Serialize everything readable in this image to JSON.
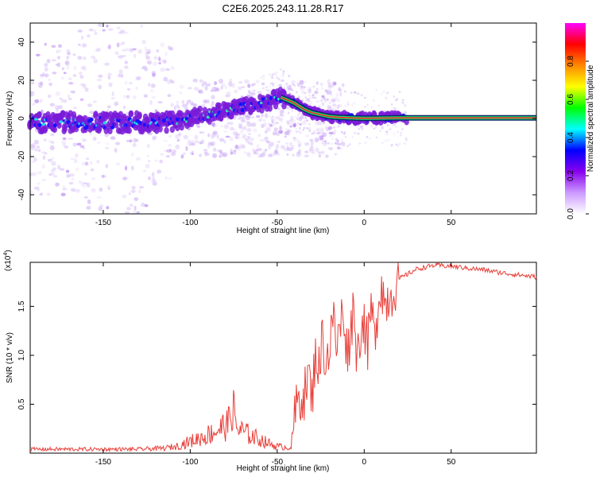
{
  "title": "C2E6.2025.243.11.28.R17",
  "chart_data": [
    {
      "type": "heatmap",
      "name": "spectrogram",
      "xlabel": "Height of straight line (km)",
      "ylabel": "Frequency (Hz)",
      "xlim": [
        -192,
        99
      ],
      "ylim": [
        -50,
        50
      ],
      "x_ticks": [
        -150,
        -100,
        -50,
        0,
        50
      ],
      "y_ticks": [
        -40,
        -20,
        0,
        20,
        40
      ],
      "ridge": {
        "description": "Peak Doppler frequency track vs height",
        "x": [
          -192,
          -150,
          -112,
          -105,
          -95,
          -85,
          -75,
          -65,
          -55,
          -48,
          -45,
          -40,
          -35,
          -30,
          -25,
          -20,
          -15,
          -10,
          -5,
          0,
          10,
          20,
          99
        ],
        "y": [
          -2,
          -2,
          -2,
          -1,
          1,
          3,
          5,
          7,
          9,
          11,
          10,
          8,
          5,
          3,
          2,
          1,
          0.6,
          0.4,
          0.2,
          0.1,
          0.2,
          0.3,
          0.3
        ]
      }
    },
    {
      "type": "colorbar",
      "name": "amplitude-scale",
      "label": "Normalized spectral amplitude",
      "range": [
        0,
        1
      ],
      "ticks": [
        "0.0",
        "0.2",
        "0.4",
        "0.6",
        "0.8"
      ],
      "colors": [
        "#ffffff",
        "#cc99ff",
        "#8800ee",
        "#0000ff",
        "#00ffff",
        "#00ff00",
        "#ffff00",
        "#ff8800",
        "#ff0000",
        "#ff00ff"
      ]
    },
    {
      "type": "line",
      "name": "snr",
      "xlabel": "Height of straight line (km)",
      "ylabel": "SNR (10 * v/v)",
      "scale_label": "(x10",
      "scale_exponent": "4",
      "scale_close": ")",
      "xlim": [
        -192,
        99
      ],
      "ylim": [
        0,
        1.95
      ],
      "x_ticks": [
        -150,
        -100,
        -50,
        0,
        50
      ],
      "y_ticks": [
        0.5,
        1.0,
        1.5
      ],
      "y_tick_labels": [
        "0.5",
        "1.0",
        "1.5"
      ],
      "color": "#e8403a",
      "x": [
        -192,
        -170,
        -150,
        -130,
        -115,
        -108,
        -100,
        -92,
        -86,
        -82,
        -78,
        -76,
        -73,
        -70,
        -65,
        -60,
        -55,
        -50,
        -46,
        -42,
        -40,
        -38,
        -36,
        -34,
        -32,
        -30,
        -28,
        -26,
        -24,
        -22,
        -20,
        -18,
        -16,
        -14,
        -12,
        -10,
        -8,
        -6,
        -4,
        -2,
        0,
        2,
        4,
        6,
        8,
        10,
        12,
        14,
        16,
        18,
        20,
        25,
        30,
        35,
        40,
        50,
        60,
        70,
        80,
        90,
        99
      ],
      "y": [
        0.04,
        0.04,
        0.04,
        0.04,
        0.05,
        0.07,
        0.12,
        0.17,
        0.22,
        0.26,
        0.3,
        0.5,
        0.25,
        0.22,
        0.18,
        0.14,
        0.1,
        0.07,
        0.06,
        0.06,
        0.35,
        0.55,
        0.6,
        0.62,
        0.8,
        0.55,
        1.05,
        0.85,
        1.2,
        0.95,
        1.05,
        1.4,
        1.1,
        1.25,
        1.5,
        1.05,
        1.2,
        1.55,
        0.95,
        1.3,
        1.35,
        1.05,
        1.5,
        1.15,
        1.55,
        1.75,
        1.5,
        1.6,
        1.65,
        1.72,
        1.78,
        1.83,
        1.88,
        1.9,
        1.92,
        1.91,
        1.89,
        1.87,
        1.84,
        1.82,
        1.8
      ]
    }
  ]
}
